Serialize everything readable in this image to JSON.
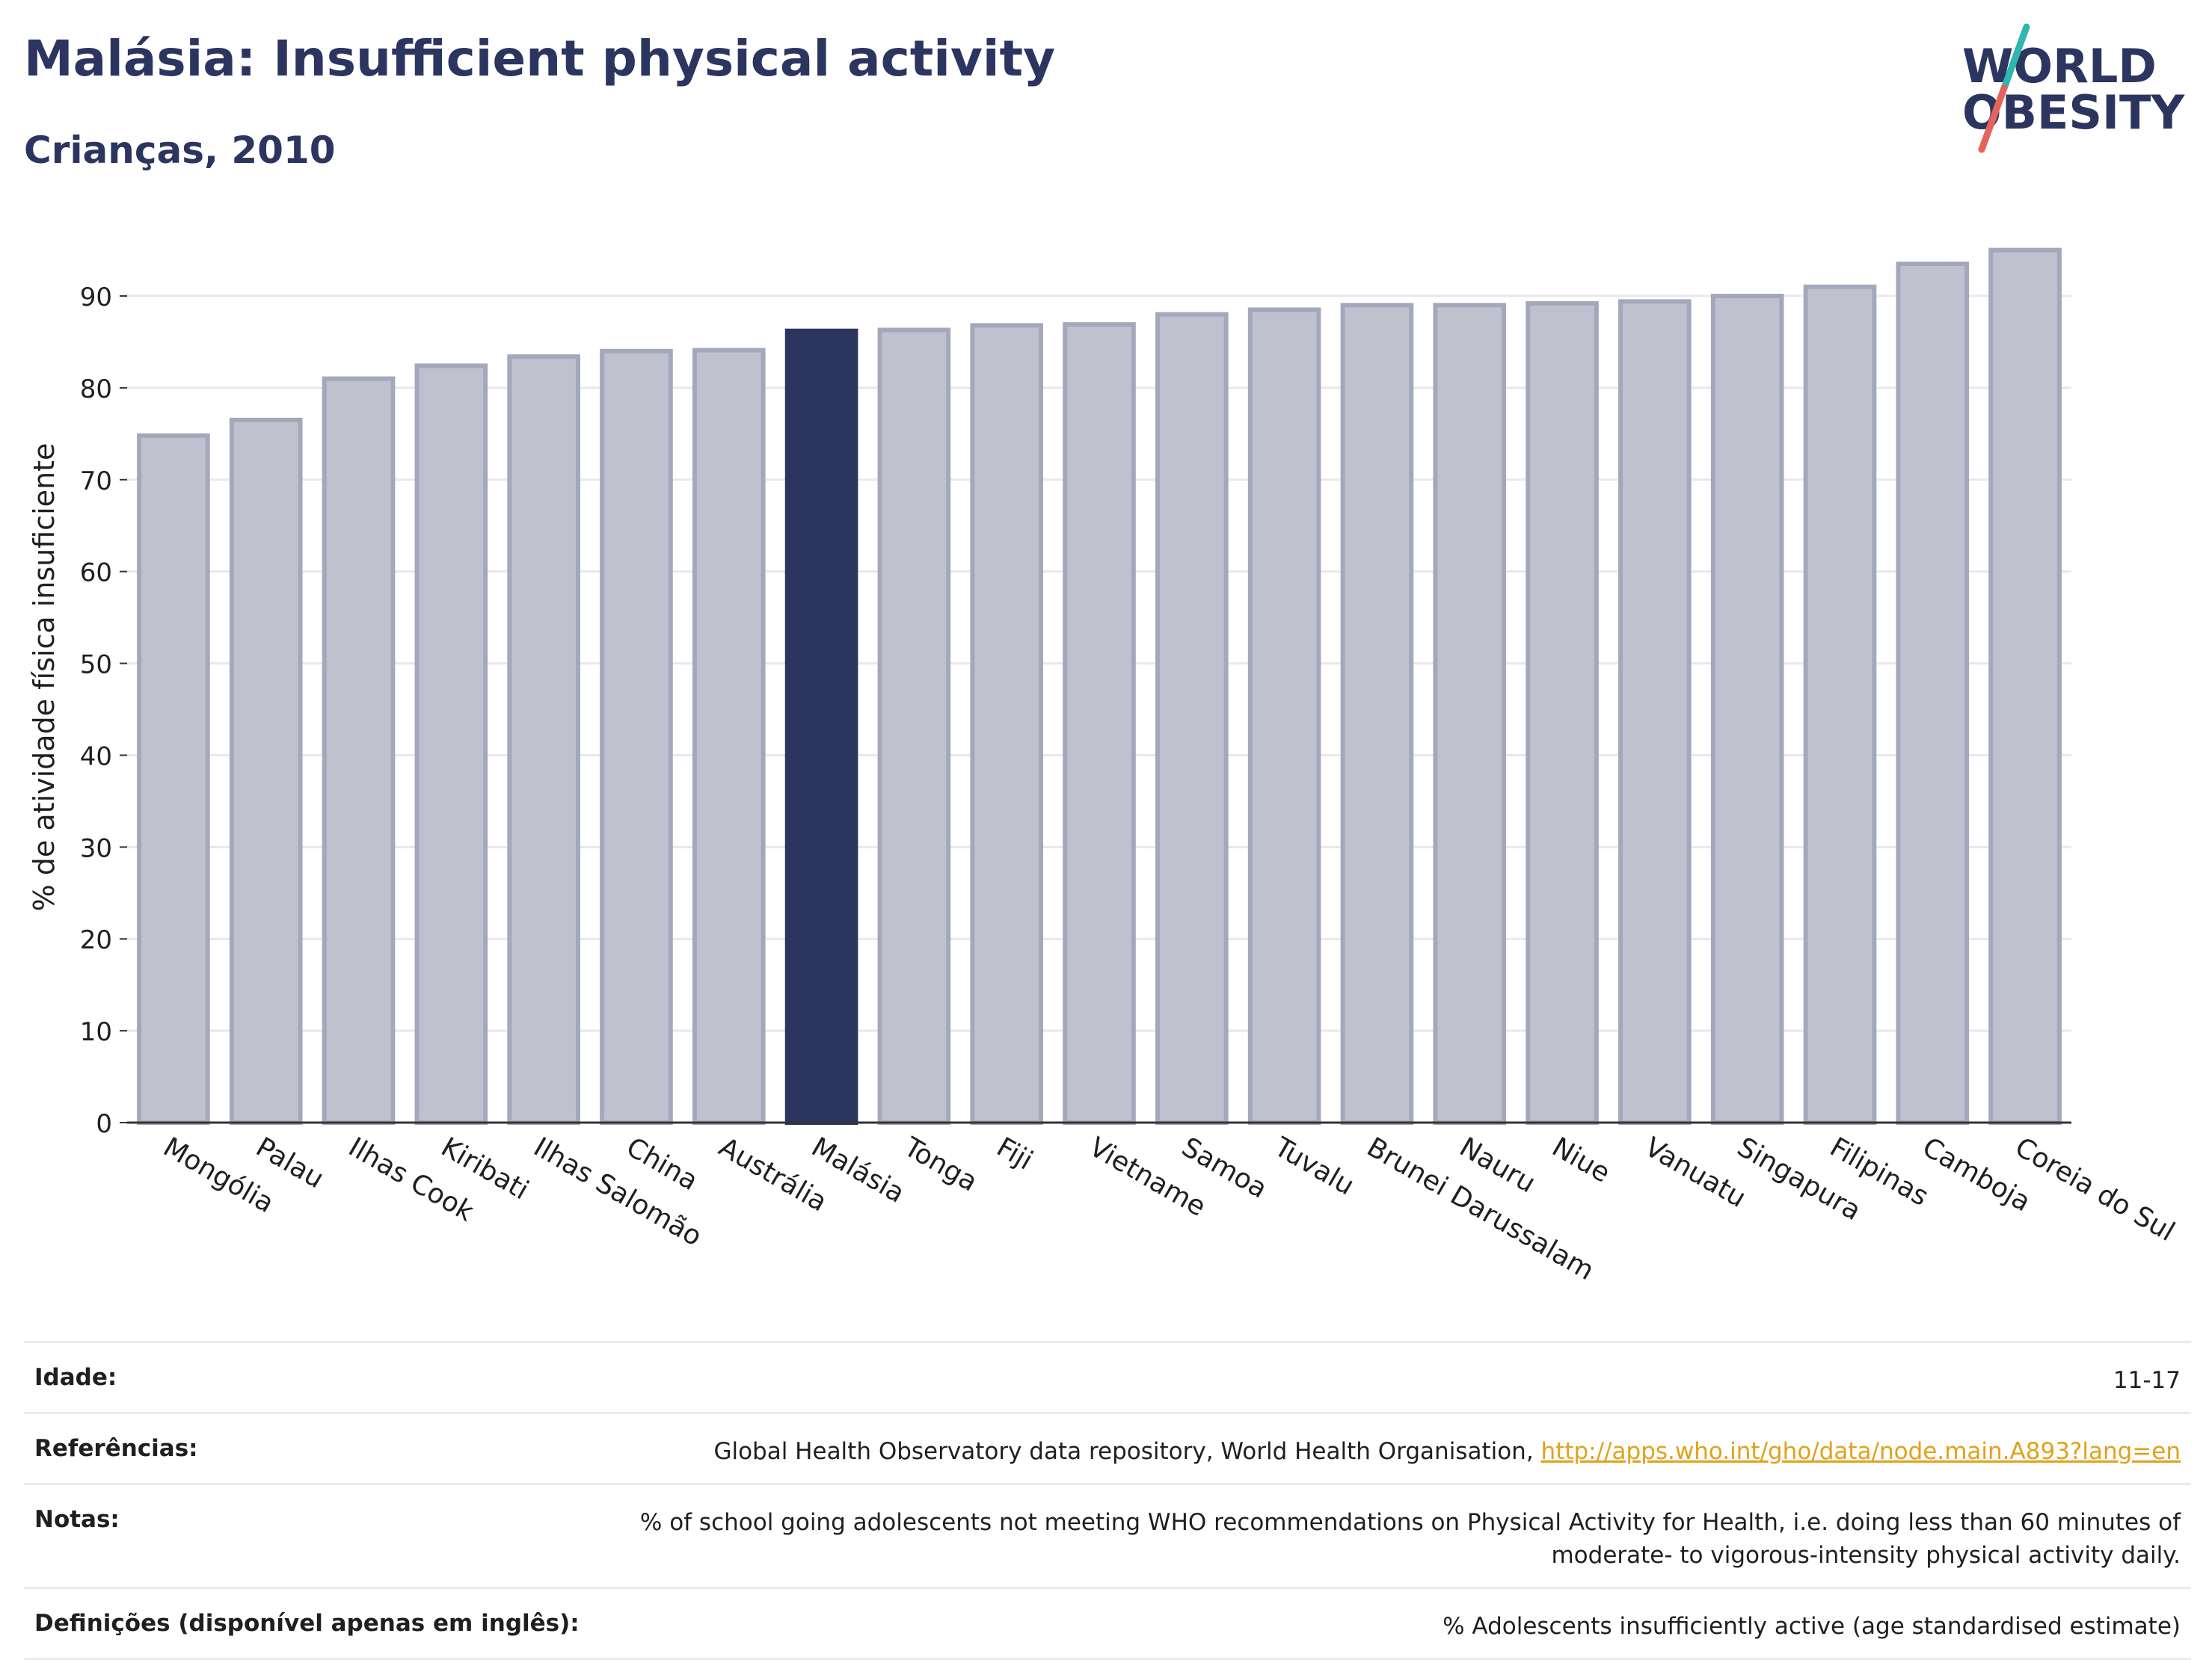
{
  "header": {
    "title": "Malásia: Insufficient physical activity",
    "subtitle": "Crianças, 2010"
  },
  "logo": {
    "line1": "WORLD",
    "line2": "OBESITY",
    "accent_colors": [
      "#2fb6ad",
      "#e3645a"
    ]
  },
  "chart_data": {
    "type": "bar",
    "categories": [
      "Mongólia",
      "Palau",
      "Ilhas Cook",
      "Kiribati",
      "Ilhas Salomão",
      "China",
      "Austrália",
      "Malásia",
      "Tonga",
      "Fiji",
      "Vietname",
      "Samoa",
      "Tuvalu",
      "Brunei Darussalam",
      "Nauru",
      "Niue",
      "Vanuatu",
      "Singapura",
      "Filipinas",
      "Camboja",
      "Coreia do Sul"
    ],
    "values": [
      74.8,
      76.5,
      81.0,
      82.4,
      83.4,
      84.0,
      84.1,
      86.2,
      86.3,
      86.8,
      86.9,
      88.0,
      88.5,
      89.0,
      89.0,
      89.2,
      89.4,
      90.0,
      91.0,
      93.5,
      95.0
    ],
    "highlight": "Malásia",
    "ylabel": "% de atividade física insuficiente",
    "xlabel": "",
    "ylim": [
      0,
      97
    ],
    "yticks": [
      0,
      10,
      20,
      30,
      40,
      50,
      60,
      70,
      80,
      90
    ],
    "grid": true,
    "colors": {
      "bar": "#bfc2ce",
      "bar_border": "#a3a8bc",
      "highlight": "#2b3560",
      "grid": "#e8e8ee"
    }
  },
  "meta": {
    "age_label": "Idade:",
    "age_value": "11-17",
    "references_label": "Referências:",
    "references_text": "Global Health Observatory data repository, World Health Organisation,",
    "references_link": "http://apps.who.int/gho/data/node.main.A893?lang=en",
    "notes_label": "Notas:",
    "notes_line1": "% of school going adolescents not meeting WHO recommendations on Physical Activity for Health, i.e. doing less than 60 minutes of",
    "notes_line2": "moderate- to vigorous-intensity physical activity daily.",
    "definitions_label": "Definições (disponível apenas em inglês):",
    "definitions_value": "% Adolescents insufficiently active (age standardised estimate)"
  }
}
